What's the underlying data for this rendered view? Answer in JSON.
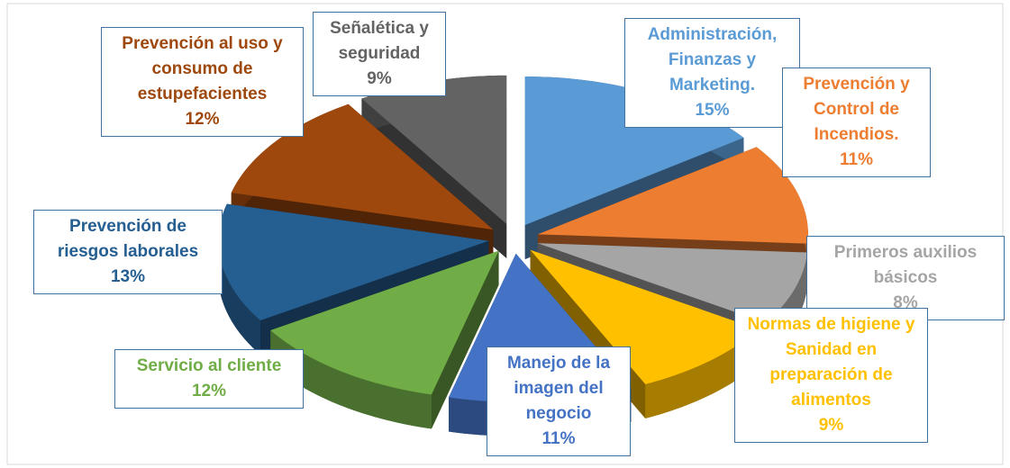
{
  "chart_data": {
    "type": "pie3d",
    "categories": [
      "Administración, Finanzas y Marketing.",
      "Prevención y Control de Incendios.",
      "Primeros auxilios básicos",
      "Normas de higiene y Sanidad en preparación de alimentos",
      "Manejo de la imagen del negocio",
      "Servicio al cliente",
      "Prevención de riesgos laborales",
      "Prevención al uso y consumo de estupefacientes",
      "Señalética y seguridad"
    ],
    "values": [
      15,
      11,
      8,
      9,
      11,
      12,
      13,
      12,
      9
    ],
    "value_labels": [
      "15%",
      "11%",
      "8%",
      "9%",
      "11%",
      "12%",
      "13%",
      "12%",
      "9%"
    ],
    "colors": [
      "#5b9bd5",
      "#ed7d31",
      "#a5a5a5",
      "#ffc000",
      "#4472c4",
      "#70ad47",
      "#255e91",
      "#9e480e",
      "#636363"
    ]
  }
}
